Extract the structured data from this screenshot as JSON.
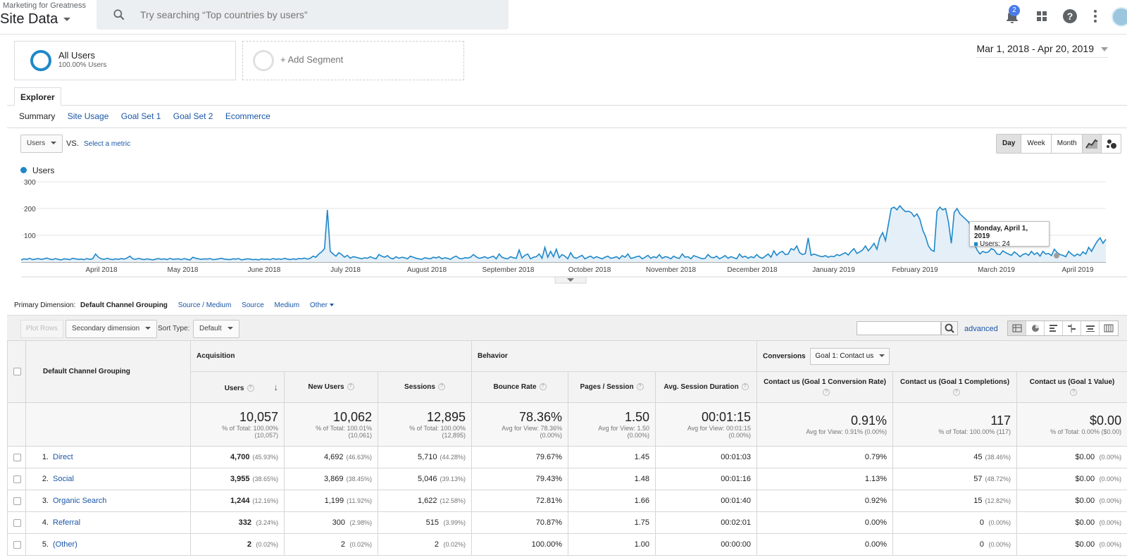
{
  "header": {
    "account": "Marketing for Greatness",
    "property": "Site Data",
    "search_placeholder": "Try searching “Top countries by users”",
    "notification_count": "2"
  },
  "segments": {
    "segment1_name": "All Users",
    "segment1_sub": "100.00% Users",
    "add_segment": "+ Add Segment"
  },
  "date_range": "Mar 1, 2018 - Apr 20, 2019",
  "explorer": {
    "tab": "Explorer",
    "subtabs": [
      "Summary",
      "Site Usage",
      "Goal Set 1",
      "Goal Set 2",
      "Ecommerce"
    ]
  },
  "metric": {
    "selected": "Users",
    "vs": "VS.",
    "select_metric": "Select a metric",
    "views": [
      "Day",
      "Week",
      "Month"
    ],
    "active_view": "Day"
  },
  "chart_data": {
    "type": "line",
    "series": [
      {
        "name": "Users",
        "color": "#1e88c9"
      }
    ],
    "y_ticks": [
      "300",
      "200",
      "100"
    ],
    "ylim": [
      0,
      300
    ],
    "x_labels": [
      "April 2018",
      "May 2018",
      "June 2018",
      "July 2018",
      "August 2018",
      "September 2018",
      "October 2018",
      "November 2018",
      "December 2018",
      "January 2019",
      "February 2019",
      "March 2019",
      "April 2019"
    ],
    "values": [
      8,
      12,
      10,
      14,
      9,
      11,
      13,
      10,
      12,
      15,
      11,
      9,
      13,
      10,
      8,
      12,
      11,
      9,
      14,
      12,
      10,
      11,
      9,
      13,
      10,
      12,
      30,
      18,
      12,
      10,
      14,
      11,
      9,
      12,
      10,
      13,
      11,
      15,
      22,
      12,
      10,
      14,
      11,
      9,
      12,
      10,
      8,
      11,
      13,
      10,
      12,
      9,
      14,
      10,
      11,
      12,
      9,
      13,
      10,
      8,
      18,
      14,
      12,
      10,
      12,
      11,
      13,
      9,
      10,
      12,
      14,
      11,
      10,
      9,
      12,
      11,
      13,
      8,
      10,
      12,
      11,
      9,
      10,
      8,
      12,
      10,
      11,
      9,
      13,
      10,
      12,
      10,
      14,
      11,
      9,
      12,
      10,
      13,
      12,
      15,
      11,
      14,
      22,
      18,
      30,
      38,
      50,
      195,
      40,
      30,
      22,
      35,
      28,
      18,
      25,
      14,
      20,
      18,
      15,
      12,
      16,
      14,
      20,
      15,
      12,
      28,
      22,
      18,
      24,
      15,
      12,
      20,
      14,
      18,
      16,
      12,
      22,
      18,
      14,
      12,
      10,
      16,
      14,
      12,
      18,
      15,
      20,
      12,
      16,
      14,
      10,
      18,
      22,
      14,
      12,
      16,
      15,
      18,
      28,
      20,
      14,
      16,
      20,
      14,
      18,
      22,
      12,
      30,
      18,
      14,
      12,
      20,
      16,
      14,
      45,
      15,
      25,
      30,
      12,
      18,
      20,
      30,
      14,
      55,
      18,
      40,
      20,
      48,
      16,
      28,
      22,
      12,
      35,
      18,
      14,
      20,
      25,
      12,
      18,
      22,
      14,
      20,
      16,
      12,
      18,
      22,
      14,
      16,
      20,
      12,
      24,
      18,
      30,
      14,
      16,
      20,
      22,
      12,
      18,
      25,
      14,
      20,
      16,
      28,
      14,
      20,
      18,
      12,
      22,
      16,
      14,
      30,
      18,
      20,
      12,
      24,
      20,
      16,
      12,
      14,
      28,
      18,
      16,
      22,
      12,
      18,
      24,
      14,
      20,
      16,
      12,
      30,
      18,
      22,
      14,
      20,
      16,
      28,
      18,
      14,
      22,
      30,
      18,
      42,
      25,
      35,
      40,
      28,
      30,
      50,
      45,
      60,
      35,
      28,
      32,
      90,
      25,
      30,
      26,
      22,
      20,
      24,
      18,
      22,
      20,
      28,
      24,
      30,
      35,
      26,
      40,
      50,
      32,
      38,
      45,
      60,
      42,
      55,
      70,
      48,
      90,
      110,
      80,
      140,
      200,
      205,
      195,
      210,
      198,
      188,
      190,
      185,
      170,
      180,
      160,
      120,
      95,
      60,
      45,
      40,
      190,
      205,
      195,
      200,
      150,
      70,
      185,
      200,
      180,
      170,
      160,
      150,
      130,
      70,
      45,
      30,
      40,
      35,
      38,
      50,
      45,
      30,
      28,
      42,
      35,
      30,
      25,
      38,
      30,
      20,
      28,
      32,
      25,
      40,
      28,
      35,
      22,
      40,
      30,
      32,
      24,
      48,
      35,
      28,
      25,
      20,
      40,
      30,
      22,
      30,
      24,
      38,
      30,
      55,
      40,
      60,
      78,
      90,
      70,
      85
    ],
    "tooltip_title": "Monday, April 1, 2019",
    "tooltip_value": "Users: 24"
  },
  "primary_dimension": {
    "label": "Primary Dimension:",
    "active": "Default Channel Grouping",
    "options": [
      "Source / Medium",
      "Source",
      "Medium",
      "Other"
    ]
  },
  "toolbar": {
    "plot_rows": "Plot Rows",
    "secondary_dimension": "Secondary dimension",
    "sort_type_label": "Sort Type:",
    "sort_type_value": "Default",
    "advanced": "advanced"
  },
  "table": {
    "dimension_header": "Default Channel Grouping",
    "groups": {
      "acquisition": "Acquisition",
      "behavior": "Behavior",
      "conversions": "Conversions",
      "goal_select": "Goal 1: Contact us"
    },
    "columns": [
      "Users",
      "New Users",
      "Sessions",
      "Bounce Rate",
      "Pages / Session",
      "Avg. Session Duration",
      "Contact us (Goal 1 Conversion Rate)",
      "Contact us (Goal 1 Completions)",
      "Contact us (Goal 1 Value)"
    ],
    "totals": [
      {
        "big": "10,057",
        "s1": "% of Total: 100.00%",
        "s2": "(10,057)"
      },
      {
        "big": "10,062",
        "s1": "% of Total: 100.01%",
        "s2": "(10,061)"
      },
      {
        "big": "12,895",
        "s1": "% of Total: 100.00%",
        "s2": "(12,895)"
      },
      {
        "big": "78.36%",
        "s1": "Avg for View: 78.36%",
        "s2": "(0.00%)"
      },
      {
        "big": "1.50",
        "s1": "Avg for View: 1.50",
        "s2": "(0.00%)"
      },
      {
        "big": "00:01:15",
        "s1": "Avg for View: 00:01:15",
        "s2": "(0.00%)"
      },
      {
        "big": "0.91%",
        "s1": "Avg for View: 0.91% (0.00%)",
        "s2": ""
      },
      {
        "big": "117",
        "s1": "% of Total: 100.00% (117)",
        "s2": ""
      },
      {
        "big": "$0.00",
        "s1": "% of Total: 0.00% ($0.00)",
        "s2": ""
      }
    ],
    "rows": [
      {
        "idx": "1.",
        "name": "Direct",
        "users": "4,700",
        "users_pct": "(45.93%)",
        "new_users": "4,692",
        "new_users_pct": "(46.63%)",
        "sessions": "5,710",
        "sessions_pct": "(44.28%)",
        "bounce": "79.67%",
        "pps": "1.45",
        "dur": "00:01:03",
        "conv": "0.79%",
        "comp": "45",
        "comp_pct": "(38.46%)",
        "value": "$0.00",
        "value_pct": "(0.00%)"
      },
      {
        "idx": "2.",
        "name": "Social",
        "users": "3,955",
        "users_pct": "(38.65%)",
        "new_users": "3,869",
        "new_users_pct": "(38.45%)",
        "sessions": "5,046",
        "sessions_pct": "(39.13%)",
        "bounce": "79.43%",
        "pps": "1.48",
        "dur": "00:01:16",
        "conv": "1.13%",
        "comp": "57",
        "comp_pct": "(48.72%)",
        "value": "$0.00",
        "value_pct": "(0.00%)"
      },
      {
        "idx": "3.",
        "name": "Organic Search",
        "users": "1,244",
        "users_pct": "(12.16%)",
        "new_users": "1,199",
        "new_users_pct": "(11.92%)",
        "sessions": "1,622",
        "sessions_pct": "(12.58%)",
        "bounce": "72.81%",
        "pps": "1.66",
        "dur": "00:01:40",
        "conv": "0.92%",
        "comp": "15",
        "comp_pct": "(12.82%)",
        "value": "$0.00",
        "value_pct": "(0.00%)"
      },
      {
        "idx": "4.",
        "name": "Referral",
        "users": "332",
        "users_pct": "(3.24%)",
        "new_users": "300",
        "new_users_pct": "(2.98%)",
        "sessions": "515",
        "sessions_pct": "(3.99%)",
        "bounce": "70.87%",
        "pps": "1.75",
        "dur": "00:02:01",
        "conv": "0.00%",
        "comp": "0",
        "comp_pct": "(0.00%)",
        "value": "$0.00",
        "value_pct": "(0.00%)"
      },
      {
        "idx": "5.",
        "name": "(Other)",
        "users": "2",
        "users_pct": "(0.02%)",
        "new_users": "2",
        "new_users_pct": "(0.02%)",
        "sessions": "2",
        "sessions_pct": "(0.02%)",
        "bounce": "100.00%",
        "pps": "1.00",
        "dur": "00:00:00",
        "conv": "0.00%",
        "comp": "0",
        "comp_pct": "(0.00%)",
        "value": "$0.00",
        "value_pct": "(0.00%)"
      }
    ]
  }
}
